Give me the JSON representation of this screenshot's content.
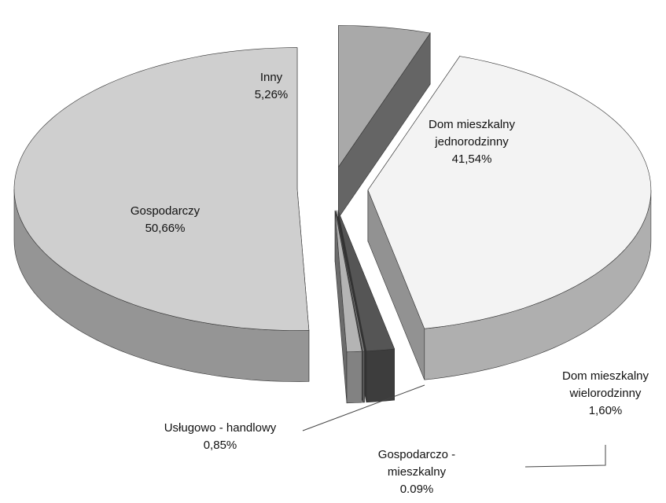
{
  "chart_data": {
    "type": "pie",
    "categories": [
      "Inny",
      "Dom mieszkalny jednorodzinny",
      "Dom mieszkalny wielorodzinny",
      "Gospodarczo - mieszkalny",
      "Usługowo - handlowy",
      "Gospodarczy"
    ],
    "values": [
      5.26,
      41.54,
      1.6,
      0.09,
      0.85,
      50.66
    ],
    "value_labels": [
      "5,26%",
      "41,54%",
      "1,60%",
      "0.09%",
      "0,85%",
      "50,66%"
    ],
    "colors": [
      "#a9a9a9",
      "#f3f3f3",
      "#555555",
      "#8a8a8a",
      "#b4b4b4",
      "#cfcfcf"
    ]
  }
}
